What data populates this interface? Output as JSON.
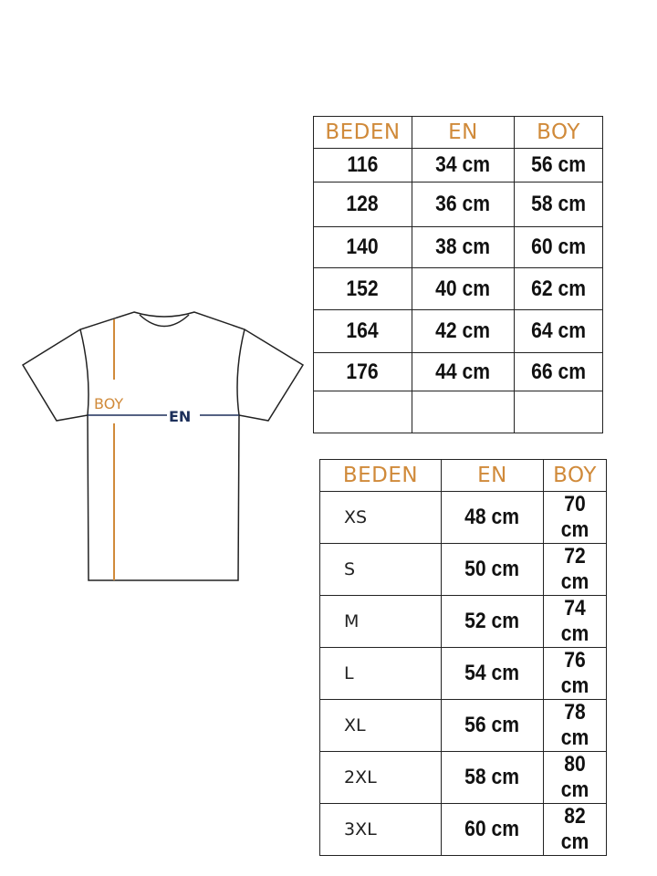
{
  "diagram": {
    "length_label": "BOY",
    "width_label": "EN",
    "colors": {
      "length": "#d08a3a",
      "width": "#1c2f5a",
      "outline": "#222222"
    }
  },
  "kids_table": {
    "headers": [
      "BEDEN",
      "EN",
      "BOY"
    ],
    "rows": [
      [
        "116",
        "34 cm",
        "56 cm"
      ],
      [
        "128",
        "36 cm",
        "58 cm"
      ],
      [
        "140",
        "38 cm",
        "60 cm"
      ],
      [
        "152",
        "40 cm",
        "62 cm"
      ],
      [
        "164",
        "42 cm",
        "64 cm"
      ],
      [
        "176",
        "44 cm",
        "66 cm"
      ],
      [
        "",
        "",
        ""
      ]
    ]
  },
  "adult_table": {
    "headers": [
      "BEDEN",
      "EN",
      "BOY"
    ],
    "rows": [
      [
        "XS",
        "48 cm",
        "70 cm"
      ],
      [
        "S",
        "50 cm",
        "72 cm"
      ],
      [
        "M",
        "52 cm",
        "74 cm"
      ],
      [
        "L",
        "54 cm",
        "76 cm"
      ],
      [
        "XL",
        "56 cm",
        "78 cm"
      ],
      [
        "2XL",
        "58 cm",
        "80 cm"
      ],
      [
        "3XL",
        "60 cm",
        "82 cm"
      ]
    ]
  }
}
